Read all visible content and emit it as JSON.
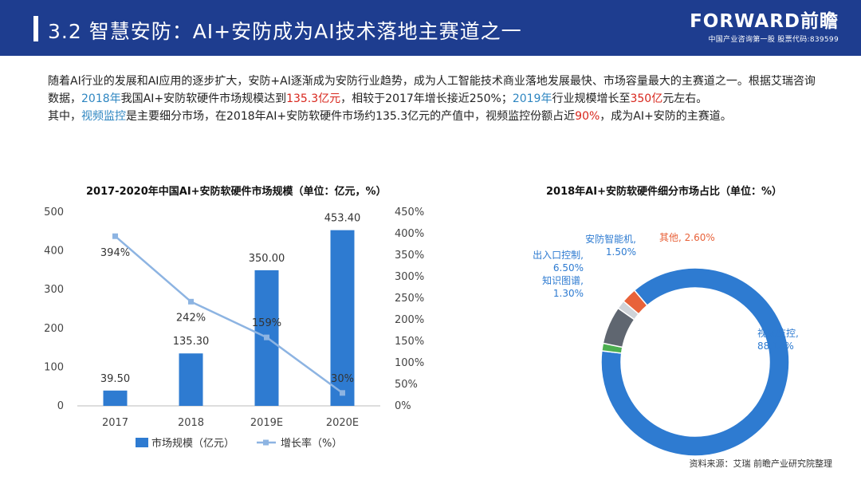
{
  "header": {
    "title": "3.2 智慧安防：AI+安防成为AI技术落地主赛道之一",
    "brand_logo": "FORWARD前瞻",
    "brand_tagline": "中国产业咨询第一股 股票代码:839599"
  },
  "intro": {
    "p1_a": "随着AI行业的发展和AI应用的逐步扩大，安防+AI逐渐成为安防行业趋势，成为人工智能技术商业落地发展最快、市场容量最大的主赛道之一。根据艾瑞咨询数据，",
    "p1_year1": "2018年",
    "p1_b": "我国AI+安防软硬件市场规模达到",
    "p1_val1": "135.3亿元",
    "p1_c": "，相较于2017年增长接近250%；",
    "p1_year2": "2019年",
    "p1_d": "行业规模增长至",
    "p1_val2": "350亿",
    "p1_e": "元左右。",
    "p2_a": "其中，",
    "p2_seg": "视频监控",
    "p2_b": "是主要细分市场，在2018年AI+安防软硬件市场约135.3亿元的产值中，视频监控份额占近",
    "p2_pct": "90%",
    "p2_c": "，成为AI+安防的主赛道。"
  },
  "colors": {
    "header_bg": "#1e3d8f",
    "bar": "#2e7bd1",
    "line": "#8db4e2",
    "highlight_blue": "#2e86c1",
    "highlight_red": "#d8261c"
  },
  "chart_data": [
    {
      "type": "bar",
      "title": "2017-2020年中国AI+安防软硬件市场规模（单位：亿元，%）",
      "categories": [
        "2017",
        "2018",
        "2019E",
        "2020E"
      ],
      "series": [
        {
          "name": "市场规模（亿元）",
          "type": "bar",
          "axis": "left",
          "values": [
            39.5,
            135.3,
            350.0,
            453.4
          ],
          "labels": [
            "39.50",
            "135.30",
            "350.00",
            "453.40"
          ]
        },
        {
          "name": "增长率（%）",
          "type": "line",
          "axis": "right",
          "values": [
            394,
            242,
            159,
            30
          ],
          "labels": [
            "394%",
            "242%",
            "159%",
            "30%"
          ]
        }
      ],
      "ylim_left": [
        0,
        500
      ],
      "yticks_left": [
        "0",
        "100",
        "200",
        "300",
        "400",
        "500"
      ],
      "ylim_right": [
        0,
        450
      ],
      "yticks_right": [
        "0%",
        "50%",
        "100%",
        "150%",
        "200%",
        "250%",
        "300%",
        "350%",
        "400%",
        "450%"
      ],
      "grid": false,
      "legend_position": "bottom"
    },
    {
      "type": "pie",
      "title": "2018年AI+安防软硬件细分市场占比（单位：%）",
      "slices": [
        {
          "name": "视频监控",
          "value": 88.1,
          "label": "视频监控,\n88.10%",
          "color": "#2e7bd1"
        },
        {
          "name": "知识图谱",
          "value": 1.3,
          "label": "知识图谱,\n1.30%",
          "color": "#4caf50"
        },
        {
          "name": "出入口控制",
          "value": 6.5,
          "label": "出入口控制,\n6.50%",
          "color": "#5f6670"
        },
        {
          "name": "安防智能机",
          "value": 1.5,
          "label": "安防智能机,\n1.50%",
          "color": "#cfd3d8"
        },
        {
          "name": "其他",
          "value": 2.6,
          "label": "其他, 2.60%",
          "color": "#e8623a"
        }
      ],
      "donut": true
    }
  ],
  "source": "资料来源：艾瑞 前瞻产业研究院整理"
}
